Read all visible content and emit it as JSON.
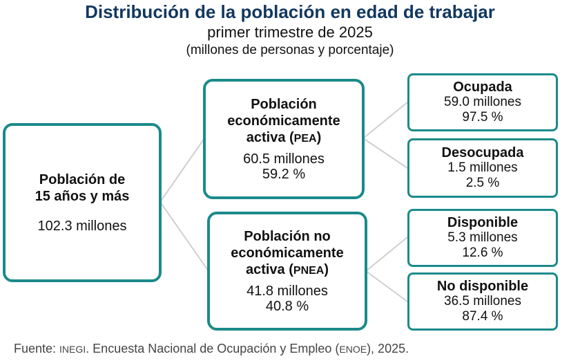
{
  "title": "Distribución de la población en edad de trabajar",
  "subtitle": "primer trimestre de 2025",
  "units": "(millones de personas y porcentaje)",
  "colors": {
    "title": "#12385f",
    "border": "#1b8a8a",
    "connector": "#cfcfcf"
  },
  "root": {
    "label_line1": "Población de",
    "label_line2": "15 años y más",
    "value": "102.3 millones"
  },
  "pea": {
    "label_line1": "Población",
    "label_line2": "económicamente",
    "label_line3_pre": "activa (",
    "label_abbr": "PEA",
    "label_line3_post": ")",
    "value": "60.5 millones",
    "percent": "59.2 %"
  },
  "pnea": {
    "label_line1": "Población no",
    "label_line2": "económicamente",
    "label_line3_pre": "activa (",
    "label_abbr": "PNEA",
    "label_line3_post": ")",
    "value": "41.8 millones",
    "percent": "40.8 %"
  },
  "ocupada": {
    "label": "Ocupada",
    "value": "59.0 millones",
    "percent": "97.5 %"
  },
  "desocupada": {
    "label": "Desocupada",
    "value": "1.5 millones",
    "percent": "2.5 %"
  },
  "disponible": {
    "label": "Disponible",
    "value": "5.3 millones",
    "percent": "12.6 %"
  },
  "no_disponible": {
    "label": "No disponible",
    "value": "36.5 millones",
    "percent": "87.4 %"
  },
  "footer": {
    "pre": "Fuente: ",
    "abbr1": "INEGI",
    "mid": ". Encuesta Nacional de Ocupación y Empleo (",
    "abbr2": "ENOE",
    "post": "), 2025."
  }
}
